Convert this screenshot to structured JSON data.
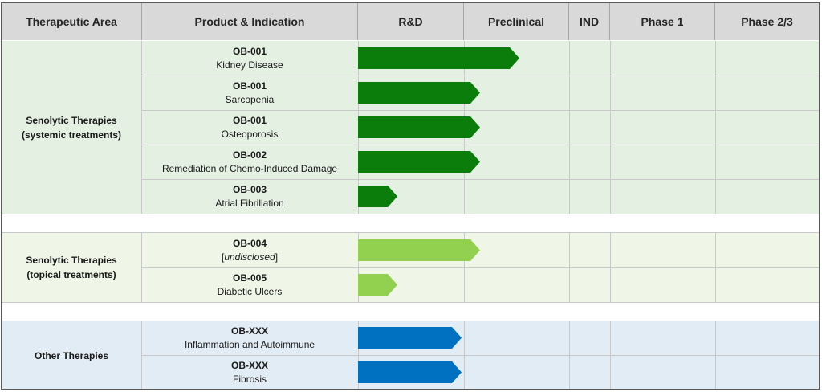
{
  "colors": {
    "header_bg": "#d9d9d9",
    "systemic_bg": "#e3f0e2",
    "topical_bg": "#eff6e7",
    "other_bg": "#e2ecf5",
    "dark_green": "#0a7d0a",
    "light_green": "#92d050",
    "blue": "#0070c0"
  },
  "header": {
    "therapeutic_area": "Therapeutic Area",
    "product_indication": "Product & Indication",
    "stages": [
      "R&D",
      "Preclinical",
      "IND",
      "Phase 1",
      "Phase 2/3"
    ]
  },
  "groups": [
    {
      "label_line1": "Senolytic Therapies",
      "label_line2": "(systemic treatments)"
    },
    {
      "label_line1": "Senolytic Therapies",
      "label_line2": "(topical treatments)"
    },
    {
      "label_line1": "Other Therapies",
      "label_line2": ""
    }
  ],
  "chart_data": {
    "type": "bar",
    "title": "",
    "stages": [
      "R&D",
      "Preclinical",
      "IND",
      "Phase 1",
      "Phase 2/3"
    ],
    "progress_unit": "stage columns completed (1.0 = end of R&D column)",
    "rows": [
      {
        "group": 0,
        "code": "OB-001",
        "indication": "Kidney Disease",
        "italic": false,
        "progress": 1.52,
        "color": "#0a7d0a"
      },
      {
        "group": 0,
        "code": "OB-001",
        "indication": "Sarcopenia",
        "italic": false,
        "progress": 1.15,
        "color": "#0a7d0a"
      },
      {
        "group": 0,
        "code": "OB-001",
        "indication": "Osteoporosis",
        "italic": false,
        "progress": 1.15,
        "color": "#0a7d0a"
      },
      {
        "group": 0,
        "code": "OB-002",
        "indication": "Remediation of Chemo-Induced Damage",
        "italic": false,
        "progress": 1.15,
        "color": "#0a7d0a"
      },
      {
        "group": 0,
        "code": "OB-003",
        "indication": "Atrial Fibrillation",
        "italic": false,
        "progress": 0.37,
        "color": "#0a7d0a"
      },
      {
        "group": 1,
        "code": "OB-004",
        "indication": "undisclosed",
        "italic": true,
        "progress": 1.15,
        "color": "#92d050"
      },
      {
        "group": 1,
        "code": "OB-005",
        "indication": "Diabetic Ulcers",
        "italic": false,
        "progress": 0.37,
        "color": "#92d050"
      },
      {
        "group": 2,
        "code": "OB-XXX",
        "indication": "Inflammation and Autoimmune",
        "italic": false,
        "progress": 0.98,
        "color": "#0070c0"
      },
      {
        "group": 2,
        "code": "OB-XXX",
        "indication": "Fibrosis",
        "italic": false,
        "progress": 0.98,
        "color": "#0070c0"
      }
    ]
  }
}
